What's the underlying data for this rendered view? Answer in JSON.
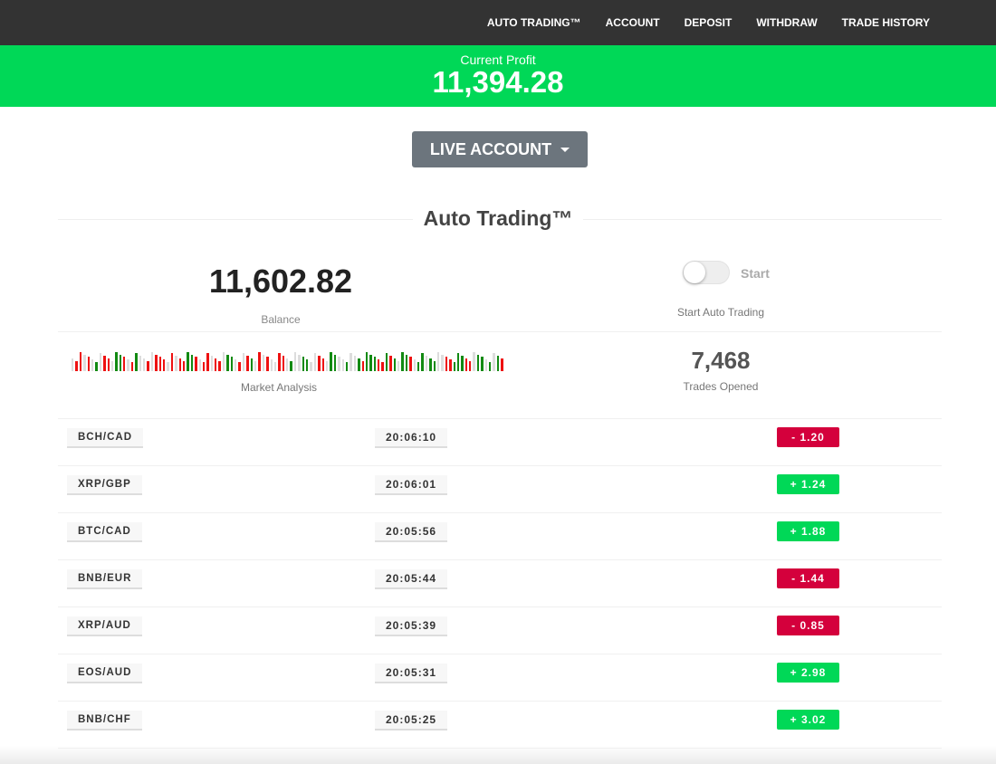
{
  "nav": {
    "items": [
      "AUTO TRADING™",
      "ACCOUNT",
      "DEPOSIT",
      "WITHDRAW",
      "TRADE HISTORY"
    ]
  },
  "profit": {
    "label": "Current Profit",
    "value": "11,394.28"
  },
  "account_button": {
    "label": "LIVE ACCOUNT"
  },
  "section_title": "Auto Trading™",
  "balance": {
    "value": "11,602.82",
    "label": "Balance"
  },
  "auto_trading": {
    "toggle_on": false,
    "toggle_label": "Start",
    "caption": "Start Auto Trading"
  },
  "market_analysis": {
    "label": "Market Analysis",
    "bars": "nrrnrngnrrnggrnrgnnrnrrrnrnrrggrnrrnrrnggnrnrgnrnrnnrrngnnggnnrrnggnngnngrgggrrgrgnggrnggnggnnrrgggrrnggngngr"
  },
  "trades_opened": {
    "value": "7,468",
    "label": "Trades Opened"
  },
  "colors": {
    "positive": "#00d857",
    "negative": "#d4003c",
    "nav_bg": "#333333",
    "bar_green": "#128a12",
    "bar_red": "#ee1111",
    "bar_neutral": "#dddddd"
  },
  "trades": [
    {
      "pair": "BCH/CAD",
      "time": "20:06:10",
      "amount": "-  1.20",
      "positive": false
    },
    {
      "pair": "XRP/GBP",
      "time": "20:06:01",
      "amount": "+  1.24",
      "positive": true
    },
    {
      "pair": "BTC/CAD",
      "time": "20:05:56",
      "amount": "+  1.88",
      "positive": true
    },
    {
      "pair": "BNB/EUR",
      "time": "20:05:44",
      "amount": "-  1.44",
      "positive": false
    },
    {
      "pair": "XRP/AUD",
      "time": "20:05:39",
      "amount": "-  0.85",
      "positive": false
    },
    {
      "pair": "EOS/AUD",
      "time": "20:05:31",
      "amount": "+  2.98",
      "positive": true
    },
    {
      "pair": "BNB/CHF",
      "time": "20:05:25",
      "amount": "+  3.02",
      "positive": true
    }
  ]
}
